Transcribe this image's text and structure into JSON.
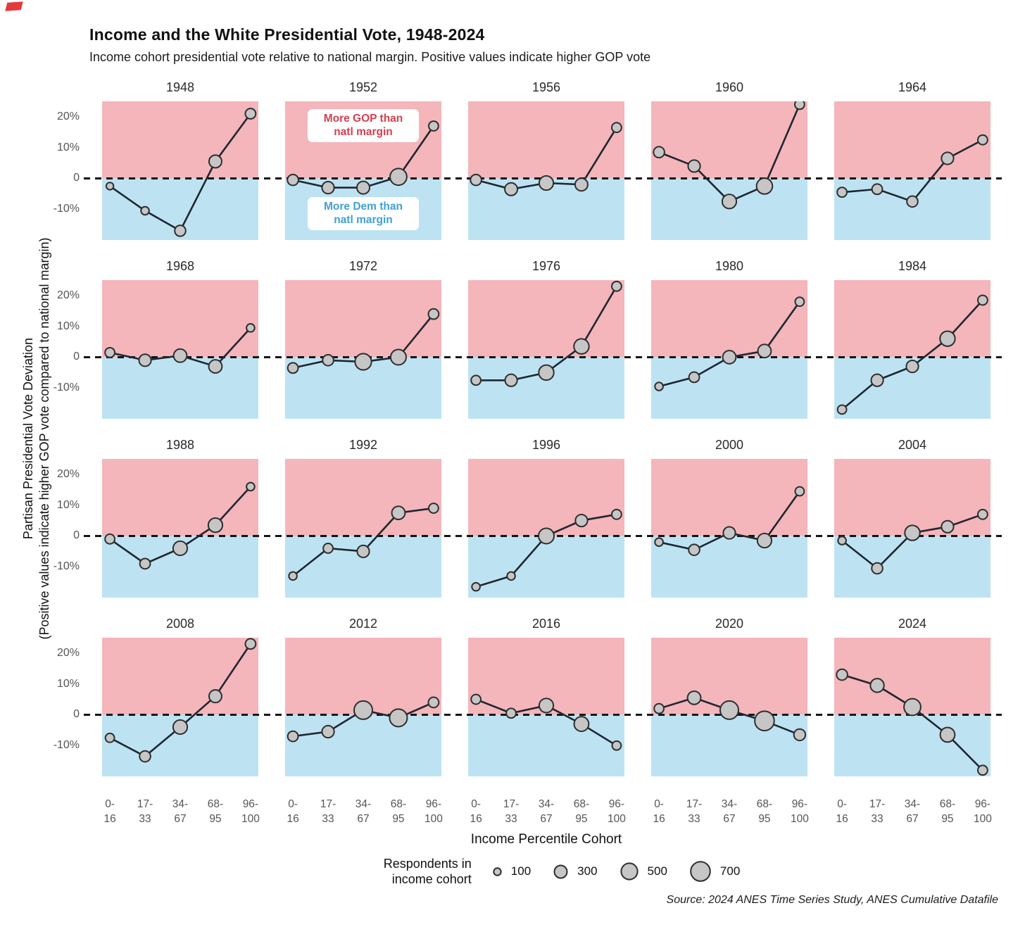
{
  "header": {
    "title": "Income and the White Presidential Vote, 1948-2024",
    "subtitle": "Income cohort presidential vote relative to national margin. Positive values indicate higher GOP vote"
  },
  "axes": {
    "y_title_line1": "Partisan Presidential Vote Deviation",
    "y_title_line2": "(Positive values indicate higher GOP vote compared to national margin)",
    "x_axis_title": "Income Percentile Cohort"
  },
  "annotations": {
    "gop_label": "More GOP than natl margin",
    "dem_label": "More Dem than natl margin"
  },
  "legend": {
    "label_line1": "Respondents in",
    "label_line2": "income cohort"
  },
  "source": {
    "text": "Source: 2024 ANES Time Series Study, ANES Cumulative Datafile"
  },
  "colors": {
    "gop_pink": "#f4b5bb",
    "dem_blue": "#bde3f3",
    "line": "#1f2730",
    "dot_fill": "#c6c6c6",
    "dot_stroke": "#2e2e2e",
    "gop_text": "#d63f4f",
    "dem_text": "#41a0d6",
    "corner_icon_red": "#e13b3b"
  },
  "chart_data": {
    "type": "line",
    "layout": "small-multiples 4 rows x 5 cols",
    "title": "Income and the White Presidential Vote, 1948-2024",
    "xlabel": "Income Percentile Cohort",
    "ylabel": "Partisan Presidential Vote Deviation (Positive values indicate higher GOP vote compared to national margin)",
    "categories": [
      "0-16",
      "17-33",
      "34-67",
      "68-95",
      "96-100"
    ],
    "x_tick_lines": [
      [
        "0-",
        "16"
      ],
      [
        "17-",
        "33"
      ],
      [
        "34-",
        "67"
      ],
      [
        "68-",
        "95"
      ],
      [
        "96-",
        "100"
      ]
    ],
    "ylim": [
      -20,
      25
    ],
    "grid": false,
    "y_ticks": [
      {
        "label": "20%",
        "value": 20
      },
      {
        "label": "10%",
        "value": 10
      },
      {
        "label": "0",
        "value": 0
      },
      {
        "label": "-10%",
        "value": -10
      }
    ],
    "annotation_panel_year": "1952",
    "size_scale": {
      "legend_values": [
        100,
        300,
        500,
        700
      ],
      "note": "dot area encodes respondents in income cohort"
    },
    "panels": [
      {
        "year": "1948",
        "values": [
          -2.5,
          -10.5,
          -17,
          5.5,
          21
        ],
        "respondents": [
          100,
          125,
          225,
          300,
          200
        ]
      },
      {
        "year": "1952",
        "values": [
          -0.5,
          -3,
          -3,
          0.5,
          17
        ],
        "respondents": [
          225,
          275,
          300,
          525,
          175
        ]
      },
      {
        "year": "1956",
        "values": [
          -0.5,
          -3.5,
          -1.5,
          -2,
          16.5
        ],
        "respondents": [
          225,
          300,
          375,
          300,
          175
        ]
      },
      {
        "year": "1960",
        "values": [
          8.5,
          4,
          -7.5,
          -2.5,
          24
        ],
        "respondents": [
          225,
          275,
          375,
          475,
          175
        ]
      },
      {
        "year": "1964",
        "values": [
          -4.5,
          -3.5,
          -7.5,
          6.5,
          12.5
        ],
        "respondents": [
          175,
          200,
          225,
          275,
          175
        ]
      },
      {
        "year": "1968",
        "values": [
          1.5,
          -1,
          0.5,
          -3,
          9.5
        ],
        "respondents": [
          175,
          275,
          325,
          325,
          125
        ]
      },
      {
        "year": "1972",
        "values": [
          -3.5,
          -1,
          -1.5,
          0,
          14
        ],
        "respondents": [
          200,
          225,
          500,
          450,
          200
        ]
      },
      {
        "year": "1976",
        "values": [
          -7.5,
          -7.5,
          -5,
          3.5,
          23
        ],
        "respondents": [
          175,
          275,
          425,
          425,
          175
        ]
      },
      {
        "year": "1980",
        "values": [
          -9.5,
          -6.5,
          0,
          2,
          18
        ],
        "respondents": [
          125,
          200,
          325,
          325,
          150
        ]
      },
      {
        "year": "1984",
        "values": [
          -17,
          -7.5,
          -3,
          6,
          18.5
        ],
        "respondents": [
          150,
          275,
          275,
          425,
          175
        ]
      },
      {
        "year": "1988",
        "values": [
          -1,
          -9,
          -4,
          3.5,
          16
        ],
        "respondents": [
          175,
          200,
          375,
          375,
          125
        ]
      },
      {
        "year": "1992",
        "values": [
          -13,
          -4,
          -5,
          7.5,
          9
        ],
        "respondents": [
          125,
          175,
          275,
          325,
          175
        ]
      },
      {
        "year": "1996",
        "values": [
          -16.5,
          -13,
          0,
          5,
          7
        ],
        "respondents": [
          125,
          125,
          450,
          275,
          175
        ]
      },
      {
        "year": "2000",
        "values": [
          -2,
          -4.5,
          1,
          -1.5,
          14.5
        ],
        "respondents": [
          125,
          225,
          275,
          375,
          150
        ]
      },
      {
        "year": "2004",
        "values": [
          -1.5,
          -10.5,
          1,
          3,
          7
        ],
        "respondents": [
          125,
          225,
          425,
          275,
          175
        ]
      },
      {
        "year": "2008",
        "values": [
          -7.5,
          -13.5,
          -4,
          6,
          23
        ],
        "respondents": [
          150,
          225,
          375,
          300,
          200
        ]
      },
      {
        "year": "2012",
        "values": [
          -7,
          -5.5,
          1.5,
          -1,
          4
        ],
        "respondents": [
          200,
          275,
          625,
          575,
          200
        ]
      },
      {
        "year": "2016",
        "values": [
          5,
          0.5,
          3,
          -3,
          -10
        ],
        "respondents": [
          175,
          175,
          375,
          400,
          150
        ]
      },
      {
        "year": "2020",
        "values": [
          2,
          5.5,
          1.5,
          -2,
          -6.5
        ],
        "respondents": [
          175,
          325,
          625,
          700,
          250
        ]
      },
      {
        "year": "2024",
        "values": [
          13,
          9.5,
          2.5,
          -6.5,
          -18
        ],
        "respondents": [
          225,
          350,
          525,
          400,
          175
        ]
      }
    ]
  }
}
